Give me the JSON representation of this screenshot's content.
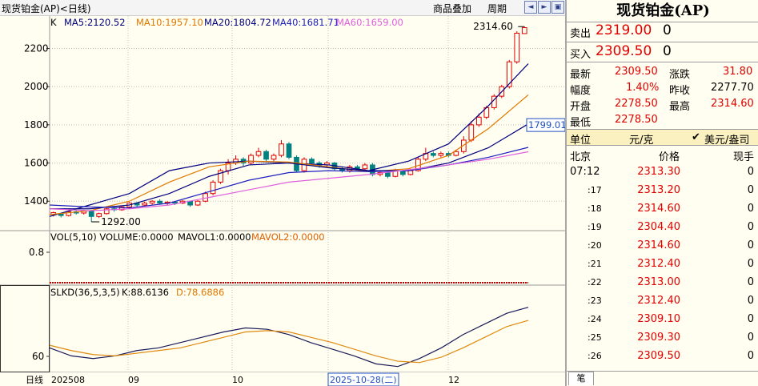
{
  "window": {
    "title": "现货铂金(AP)<日线)"
  },
  "toolbar": {
    "overlay_label": "商品叠加",
    "period_label": "周期",
    "nav_icons": [
      "◧",
      "◨",
      "▣"
    ]
  },
  "ma": {
    "k_label": "K",
    "ma5": "MA5:2120.52",
    "ma10": "MA10:1957.10",
    "ma20": "MA20:1804.72",
    "ma40": "MA40:1681.71",
    "ma60": "MA60:1659.00"
  },
  "colors": {
    "up": "#e00000",
    "down": "#008080",
    "ma5": "#000080",
    "ma10": "#e07800",
    "ma20": "#000080",
    "ma40": "#1f1fc0",
    "ma60": "#e060e0",
    "vol_line": "#e06000",
    "grid": "#c0c0c0"
  },
  "price_axis": {
    "labels": [
      "2200",
      "2000",
      "1800",
      "1600",
      "1400"
    ],
    "current": "1799.01"
  },
  "annotations": {
    "high": "2314.60",
    "low": "1292.00"
  },
  "volume": {
    "label_a": "VOL(5,10) VOLUME:0.0000",
    "label_b": "MAVOL1:0.0000",
    "label_c": "MAVOL2:0.0000",
    "axis": "0.8"
  },
  "slkd": {
    "label": "SLKD(36,5,3,5)",
    "k": "K:88.6136",
    "d": "D:78.6886",
    "axis": "60"
  },
  "x_axis": {
    "mode": "日线",
    "labels": [
      "202508",
      "09",
      "10",
      "12"
    ],
    "cursor_date": "2025-10-28(二)"
  },
  "quote": {
    "title": "现货铂金(AP)",
    "sell_label": "卖出",
    "sell_price": "2319.00",
    "sell_vol": "0",
    "buy_label": "买入",
    "buy_price": "2309.50",
    "buy_vol": "0",
    "latest_label": "最新",
    "latest": "2309.50",
    "change_label": "涨跌",
    "change": "31.80",
    "pct_label": "幅度",
    "pct": "1.40%",
    "prev_label": "昨收",
    "prev": "2277.70",
    "open_label": "开盘",
    "open": "2278.50",
    "high_label": "最高",
    "high": "2314.60",
    "low_label": "最低",
    "low": "2278.50",
    "unit_label": "单位",
    "unit": "元/克",
    "currency": "美元/盎司",
    "tick_head": {
      "place": "北京",
      "price": "价格",
      "vol": "现手"
    },
    "ticks": [
      {
        "t": "07:12",
        "p": "2313.30",
        "v": "0"
      },
      {
        "t": ":17",
        "p": "2313.20",
        "v": "0"
      },
      {
        "t": ":18",
        "p": "2314.60",
        "v": "0"
      },
      {
        "t": ":19",
        "p": "2304.40",
        "v": "0"
      },
      {
        "t": ":20",
        "p": "2314.60",
        "v": "0"
      },
      {
        "t": ":21",
        "p": "2312.40",
        "v": "0"
      },
      {
        "t": ":22",
        "p": "2313.00",
        "v": "0"
      },
      {
        "t": ":23",
        "p": "2312.40",
        "v": "0"
      },
      {
        "t": ":24",
        "p": "2309.10",
        "v": "0"
      },
      {
        "t": ":25",
        "p": "2309.30",
        "v": "0"
      },
      {
        "t": ":26",
        "p": "2309.50",
        "v": "0"
      }
    ],
    "tab": "笔"
  },
  "chart_data": {
    "type": "candlestick",
    "ylim": [
      1250,
      2370
    ],
    "ma_series": [
      {
        "name": "MA5",
        "values": [
          1320,
          1380,
          1440,
          1560,
          1600,
          1610,
          1600,
          1590,
          1560,
          1610,
          1700,
          1900,
          2120
        ]
      },
      {
        "name": "MA10",
        "values": [
          1330,
          1350,
          1400,
          1500,
          1580,
          1610,
          1605,
          1580,
          1555,
          1570,
          1640,
          1780,
          1957
        ]
      },
      {
        "name": "MA20",
        "values": [
          1360,
          1360,
          1380,
          1440,
          1530,
          1590,
          1600,
          1575,
          1560,
          1560,
          1600,
          1680,
          1805
        ]
      },
      {
        "name": "MA40",
        "values": [
          1380,
          1370,
          1365,
          1390,
          1450,
          1510,
          1550,
          1560,
          1555,
          1560,
          1590,
          1630,
          1682
        ]
      },
      {
        "name": "MA60",
        "values": [
          1360,
          1350,
          1360,
          1380,
          1420,
          1460,
          1500,
          1520,
          1540,
          1565,
          1590,
          1620,
          1659
        ]
      }
    ],
    "candles": [
      [
        1330,
        1340,
        1320,
        1345
      ],
      [
        1335,
        1325,
        1315,
        1340
      ],
      [
        1325,
        1345,
        1320,
        1350
      ],
      [
        1345,
        1338,
        1330,
        1352
      ],
      [
        1338,
        1350,
        1330,
        1355
      ],
      [
        1350,
        1320,
        1292,
        1352
      ],
      [
        1320,
        1335,
        1312,
        1340
      ],
      [
        1335,
        1360,
        1330,
        1365
      ],
      [
        1360,
        1355,
        1345,
        1368
      ],
      [
        1355,
        1370,
        1350,
        1375
      ],
      [
        1370,
        1390,
        1360,
        1395
      ],
      [
        1390,
        1380,
        1370,
        1395
      ],
      [
        1380,
        1390,
        1372,
        1398
      ],
      [
        1390,
        1400,
        1380,
        1405
      ],
      [
        1400,
        1390,
        1385,
        1410
      ],
      [
        1390,
        1395,
        1380,
        1400
      ],
      [
        1395,
        1390,
        1380,
        1400
      ],
      [
        1390,
        1400,
        1385,
        1405
      ],
      [
        1400,
        1380,
        1370,
        1402
      ],
      [
        1380,
        1400,
        1375,
        1405
      ],
      [
        1400,
        1440,
        1395,
        1450
      ],
      [
        1440,
        1500,
        1430,
        1510
      ],
      [
        1500,
        1560,
        1490,
        1570
      ],
      [
        1560,
        1600,
        1540,
        1620
      ],
      [
        1600,
        1620,
        1590,
        1640
      ],
      [
        1620,
        1600,
        1585,
        1630
      ],
      [
        1600,
        1640,
        1590,
        1650
      ],
      [
        1640,
        1660,
        1630,
        1680
      ],
      [
        1660,
        1620,
        1610,
        1670
      ],
      [
        1620,
        1640,
        1610,
        1650
      ],
      [
        1640,
        1700,
        1630,
        1720
      ],
      [
        1700,
        1630,
        1620,
        1710
      ],
      [
        1630,
        1560,
        1550,
        1640
      ],
      [
        1560,
        1620,
        1550,
        1630
      ],
      [
        1620,
        1600,
        1590,
        1630
      ],
      [
        1600,
        1590,
        1575,
        1610
      ],
      [
        1590,
        1600,
        1580,
        1610
      ],
      [
        1600,
        1570,
        1560,
        1605
      ],
      [
        1570,
        1560,
        1550,
        1580
      ],
      [
        1560,
        1580,
        1550,
        1590
      ],
      [
        1580,
        1570,
        1560,
        1590
      ],
      [
        1570,
        1590,
        1565,
        1600
      ],
      [
        1590,
        1540,
        1530,
        1600
      ],
      [
        1540,
        1550,
        1530,
        1560
      ],
      [
        1550,
        1530,
        1520,
        1555
      ],
      [
        1530,
        1560,
        1525,
        1570
      ],
      [
        1560,
        1540,
        1530,
        1565
      ],
      [
        1540,
        1560,
        1535,
        1570
      ],
      [
        1560,
        1620,
        1555,
        1630
      ],
      [
        1620,
        1650,
        1610,
        1680
      ],
      [
        1650,
        1640,
        1630,
        1660
      ],
      [
        1640,
        1650,
        1630,
        1660
      ],
      [
        1650,
        1640,
        1630,
        1660
      ],
      [
        1640,
        1660,
        1635,
        1670
      ],
      [
        1660,
        1720,
        1650,
        1740
      ],
      [
        1720,
        1800,
        1710,
        1820
      ],
      [
        1800,
        1840,
        1790,
        1860
      ],
      [
        1840,
        1890,
        1830,
        1900
      ],
      [
        1890,
        1950,
        1880,
        1960
      ],
      [
        1950,
        2000,
        1940,
        2010
      ],
      [
        2000,
        2130,
        1990,
        2140
      ],
      [
        2130,
        2280,
        2120,
        2290
      ],
      [
        2278,
        2309,
        2278,
        2315
      ]
    ],
    "kd": {
      "k": [
        58,
        52,
        50,
        52,
        56,
        58,
        62,
        66,
        70,
        73,
        72,
        68,
        62,
        57,
        52,
        46,
        44,
        50,
        58,
        68,
        76,
        84,
        88.6
      ],
      "d": [
        60,
        56,
        53,
        52,
        54,
        56,
        58,
        62,
        66,
        70,
        71,
        70,
        66,
        62,
        57,
        52,
        48,
        47,
        51,
        58,
        66,
        74,
        78.7
      ]
    }
  }
}
